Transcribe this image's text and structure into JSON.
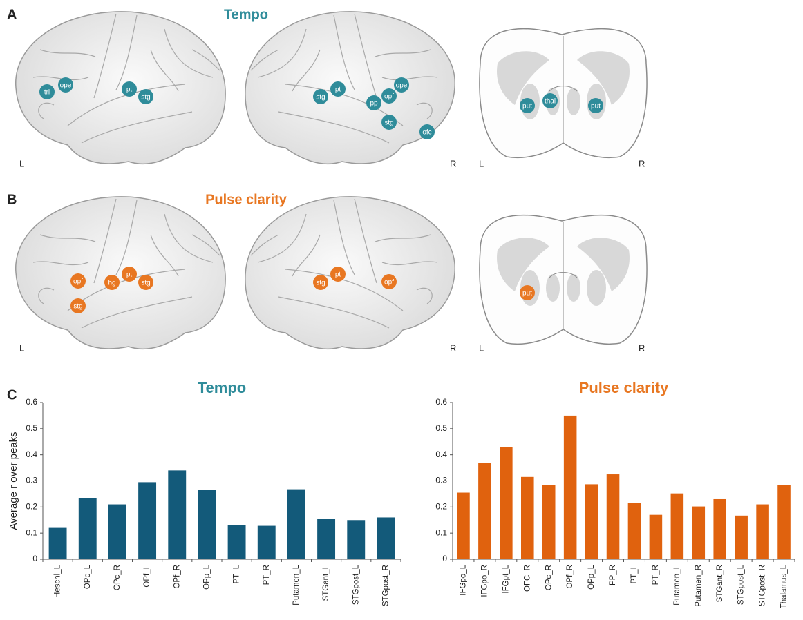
{
  "panels": [
    {
      "letter": "A",
      "title": "Tempo",
      "color": "#2f8c9a",
      "brains": [
        {
          "labels": [
            "L"
          ],
          "regions": [
            "tri",
            "ope",
            "pt",
            "stg"
          ]
        },
        {
          "labels": [
            "R"
          ],
          "regions": [
            "stg",
            "pt",
            "pp",
            "opf",
            "ope",
            "stg",
            "ofc"
          ]
        },
        {
          "labels": [
            "L",
            "R"
          ],
          "regions": [
            "put",
            "thal",
            "put"
          ]
        }
      ]
    },
    {
      "letter": "B",
      "title": "Pulse clarity",
      "color": "#e87722",
      "brains": [
        {
          "labels": [
            "L"
          ],
          "regions": [
            "opf",
            "hg",
            "pt",
            "stg",
            "stg"
          ]
        },
        {
          "labels": [
            "R"
          ],
          "regions": [
            "stg",
            "pt",
            "opf"
          ]
        },
        {
          "labels": [
            "L",
            "R"
          ],
          "regions": [
            "put"
          ]
        }
      ]
    }
  ],
  "panel_c_letter": "C",
  "chart_data": [
    {
      "type": "bar",
      "title": "Tempo",
      "title_color": "#2f8c9a",
      "y_label": "Average r over peaks",
      "color": "#135a7a",
      "categories": [
        "Heschl_L",
        "OPc_L",
        "OPc_R",
        "OPf_L",
        "OPf_R",
        "OPp_L",
        "PT_L",
        "PT_R",
        "Putamen_L",
        "STGant_L",
        "STGpost_L",
        "STGpost_R"
      ],
      "values": [
        0.12,
        0.235,
        0.21,
        0.295,
        0.34,
        0.265,
        0.13,
        0.128,
        0.268,
        0.155,
        0.15,
        0.16
      ],
      "ylim": [
        0,
        0.6
      ],
      "yticks": [
        0,
        0.1,
        0.2,
        0.3,
        0.4,
        0.5,
        0.6
      ]
    },
    {
      "type": "bar",
      "title": "Pulse clarity",
      "title_color": "#e87722",
      "color": "#e0620e",
      "categories": [
        "IFGpo_L",
        "IFGpo_R",
        "IFGpt_L",
        "OFC_R",
        "OPc_R",
        "OPf_R",
        "OPp_L",
        "PP_R",
        "PT_L",
        "PT_R",
        "Putamen_L",
        "Putamen_R",
        "STGant_R",
        "STGpost_L",
        "STGpost_R",
        "Thalamus_L"
      ],
      "values": [
        0.255,
        0.37,
        0.43,
        0.315,
        0.283,
        0.55,
        0.287,
        0.325,
        0.215,
        0.17,
        0.252,
        0.202,
        0.23,
        0.167,
        0.21,
        0.285
      ],
      "ylim": [
        0,
        0.6
      ],
      "yticks": [
        0,
        0.1,
        0.2,
        0.3,
        0.4,
        0.5,
        0.6
      ]
    }
  ]
}
